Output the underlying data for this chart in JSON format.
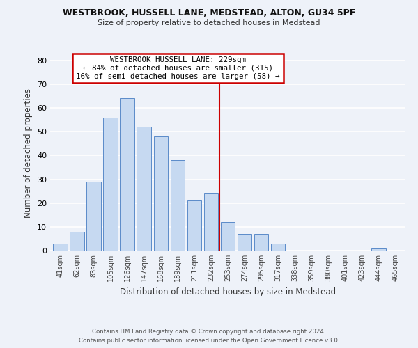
{
  "title1": "WESTBROOK, HUSSELL LANE, MEDSTEAD, ALTON, GU34 5PF",
  "title2": "Size of property relative to detached houses in Medstead",
  "xlabel": "Distribution of detached houses by size in Medstead",
  "ylabel": "Number of detached properties",
  "bar_labels": [
    "41sqm",
    "62sqm",
    "83sqm",
    "105sqm",
    "126sqm",
    "147sqm",
    "168sqm",
    "189sqm",
    "211sqm",
    "232sqm",
    "253sqm",
    "274sqm",
    "295sqm",
    "317sqm",
    "338sqm",
    "359sqm",
    "380sqm",
    "401sqm",
    "423sqm",
    "444sqm",
    "465sqm"
  ],
  "bar_values": [
    3,
    8,
    29,
    56,
    64,
    52,
    48,
    38,
    21,
    24,
    12,
    7,
    7,
    3,
    0,
    0,
    0,
    0,
    0,
    1,
    0
  ],
  "bar_color": "#c6d9f1",
  "bar_edge_color": "#5b8bc9",
  "vline_x": 9.5,
  "vline_color": "#cc0000",
  "annotation_title": "WESTBROOK HUSSELL LANE: 229sqm",
  "annotation_line1": "← 84% of detached houses are smaller (315)",
  "annotation_line2": "16% of semi-detached houses are larger (58) →",
  "annotation_box_edge": "#cc0000",
  "footer1": "Contains HM Land Registry data © Crown copyright and database right 2024.",
  "footer2": "Contains public sector information licensed under the Open Government Licence v3.0.",
  "ylim": [
    0,
    82
  ],
  "bg_color": "#eef2f9",
  "grid_color": "#ffffff",
  "tick_color": "#444444"
}
